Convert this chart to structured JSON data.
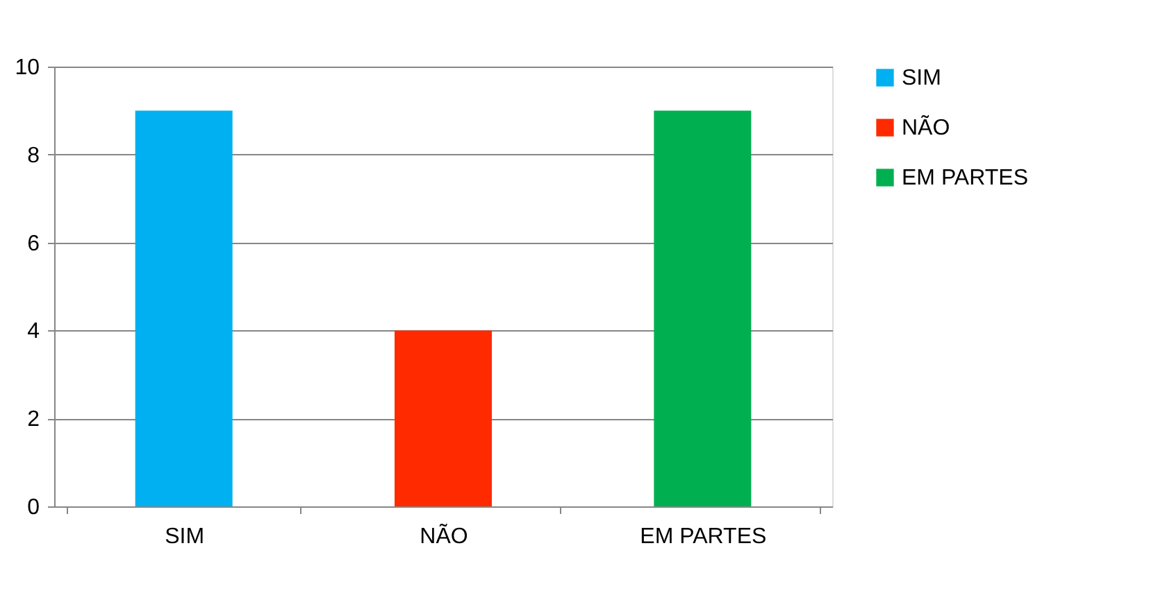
{
  "chart_data": {
    "type": "bar",
    "categories": [
      "SIM",
      "NÃO",
      "EM PARTES"
    ],
    "series": [
      {
        "name": "SIM",
        "color": "#00b0f0",
        "values": [
          9,
          null,
          null
        ]
      },
      {
        "name": "NÃO",
        "color": "#ff2a00",
        "values": [
          null,
          4,
          null
        ]
      },
      {
        "name": "EM PARTES",
        "color": "#00b050",
        "values": [
          null,
          null,
          9
        ]
      }
    ],
    "ylim": [
      0,
      10
    ],
    "yticks": [
      0,
      2,
      4,
      6,
      8,
      10
    ],
    "grid": "y",
    "legend": "right"
  }
}
